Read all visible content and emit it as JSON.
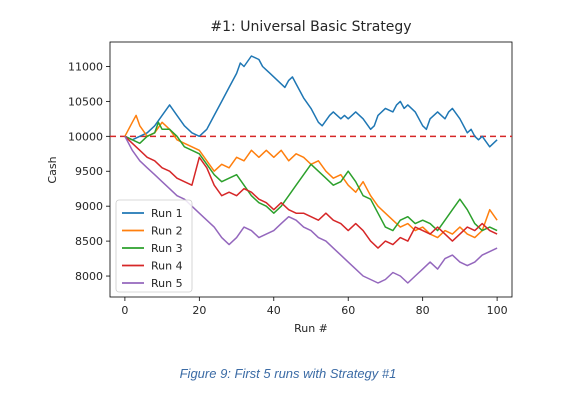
{
  "caption": "Figure 9: First 5 runs with Strategy #1",
  "chart_data": {
    "type": "line",
    "title": "#1: Universal Basic Strategy",
    "xlabel": "Run #",
    "ylabel": "Cash",
    "xlim": [
      -4,
      104
    ],
    "ylim": [
      7700,
      11350
    ],
    "xticks": [
      0,
      20,
      40,
      60,
      80,
      100
    ],
    "yticks": [
      8000,
      8500,
      9000,
      9500,
      10000,
      10500,
      11000
    ],
    "grid": false,
    "legend_position": "lower-left",
    "reference_line": {
      "y": 10000,
      "style": "dashed",
      "color": "#d62728"
    },
    "series": [
      {
        "name": "Run 1",
        "color": "#1f77b4",
        "points": [
          [
            0,
            10000
          ],
          [
            2,
            9950
          ],
          [
            4,
            10000
          ],
          [
            6,
            10050
          ],
          [
            8,
            10150
          ],
          [
            10,
            10300
          ],
          [
            12,
            10450
          ],
          [
            14,
            10300
          ],
          [
            16,
            10150
          ],
          [
            18,
            10050
          ],
          [
            20,
            10000
          ],
          [
            22,
            10100
          ],
          [
            24,
            10300
          ],
          [
            26,
            10500
          ],
          [
            28,
            10700
          ],
          [
            30,
            10900
          ],
          [
            31,
            11050
          ],
          [
            32,
            11000
          ],
          [
            34,
            11150
          ],
          [
            36,
            11100
          ],
          [
            37,
            11000
          ],
          [
            38,
            10950
          ],
          [
            39,
            10900
          ],
          [
            40,
            10850
          ],
          [
            41,
            10800
          ],
          [
            42,
            10750
          ],
          [
            43,
            10700
          ],
          [
            44,
            10800
          ],
          [
            45,
            10850
          ],
          [
            46,
            10750
          ],
          [
            48,
            10550
          ],
          [
            50,
            10400
          ],
          [
            52,
            10200
          ],
          [
            53,
            10150
          ],
          [
            55,
            10300
          ],
          [
            56,
            10350
          ],
          [
            58,
            10250
          ],
          [
            59,
            10300
          ],
          [
            60,
            10250
          ],
          [
            61,
            10300
          ],
          [
            62,
            10350
          ],
          [
            64,
            10250
          ],
          [
            66,
            10100
          ],
          [
            67,
            10150
          ],
          [
            68,
            10300
          ],
          [
            70,
            10400
          ],
          [
            72,
            10350
          ],
          [
            73,
            10450
          ],
          [
            74,
            10500
          ],
          [
            75,
            10400
          ],
          [
            76,
            10450
          ],
          [
            78,
            10350
          ],
          [
            80,
            10150
          ],
          [
            81,
            10100
          ],
          [
            82,
            10250
          ],
          [
            84,
            10350
          ],
          [
            85,
            10300
          ],
          [
            86,
            10250
          ],
          [
            87,
            10350
          ],
          [
            88,
            10400
          ],
          [
            90,
            10250
          ],
          [
            92,
            10050
          ],
          [
            93,
            10100
          ],
          [
            94,
            10000
          ],
          [
            95,
            9950
          ],
          [
            96,
            10000
          ],
          [
            98,
            9850
          ],
          [
            100,
            9950
          ]
        ]
      },
      {
        "name": "Run 2",
        "color": "#ff7f0e",
        "points": [
          [
            0,
            10000
          ],
          [
            2,
            10200
          ],
          [
            3,
            10300
          ],
          [
            4,
            10150
          ],
          [
            6,
            10000
          ],
          [
            8,
            10050
          ],
          [
            10,
            10200
          ],
          [
            12,
            10100
          ],
          [
            14,
            9950
          ],
          [
            16,
            9900
          ],
          [
            18,
            9850
          ],
          [
            20,
            9800
          ],
          [
            22,
            9650
          ],
          [
            24,
            9500
          ],
          [
            26,
            9600
          ],
          [
            28,
            9550
          ],
          [
            30,
            9700
          ],
          [
            32,
            9650
          ],
          [
            34,
            9800
          ],
          [
            36,
            9700
          ],
          [
            37,
            9750
          ],
          [
            38,
            9800
          ],
          [
            40,
            9700
          ],
          [
            42,
            9800
          ],
          [
            44,
            9650
          ],
          [
            46,
            9750
          ],
          [
            48,
            9700
          ],
          [
            50,
            9600
          ],
          [
            52,
            9650
          ],
          [
            54,
            9500
          ],
          [
            56,
            9400
          ],
          [
            58,
            9450
          ],
          [
            60,
            9300
          ],
          [
            62,
            9200
          ],
          [
            64,
            9350
          ],
          [
            66,
            9150
          ],
          [
            68,
            9000
          ],
          [
            70,
            8900
          ],
          [
            72,
            8800
          ],
          [
            74,
            8700
          ],
          [
            76,
            8750
          ],
          [
            78,
            8650
          ],
          [
            80,
            8700
          ],
          [
            82,
            8600
          ],
          [
            84,
            8550
          ],
          [
            86,
            8650
          ],
          [
            88,
            8600
          ],
          [
            90,
            8700
          ],
          [
            92,
            8600
          ],
          [
            94,
            8550
          ],
          [
            96,
            8650
          ],
          [
            98,
            8950
          ],
          [
            100,
            8800
          ]
        ]
      },
      {
        "name": "Run 3",
        "color": "#2ca02c",
        "points": [
          [
            0,
            10000
          ],
          [
            2,
            9950
          ],
          [
            4,
            9900
          ],
          [
            6,
            10000
          ],
          [
            8,
            10050
          ],
          [
            9,
            10200
          ],
          [
            10,
            10100
          ],
          [
            12,
            10100
          ],
          [
            14,
            10000
          ],
          [
            16,
            9850
          ],
          [
            18,
            9800
          ],
          [
            20,
            9750
          ],
          [
            22,
            9600
          ],
          [
            24,
            9450
          ],
          [
            26,
            9350
          ],
          [
            28,
            9400
          ],
          [
            30,
            9450
          ],
          [
            32,
            9300
          ],
          [
            34,
            9150
          ],
          [
            36,
            9050
          ],
          [
            38,
            9000
          ],
          [
            40,
            8900
          ],
          [
            42,
            9000
          ],
          [
            44,
            9150
          ],
          [
            46,
            9300
          ],
          [
            48,
            9450
          ],
          [
            50,
            9600
          ],
          [
            52,
            9500
          ],
          [
            54,
            9400
          ],
          [
            56,
            9300
          ],
          [
            58,
            9350
          ],
          [
            60,
            9500
          ],
          [
            62,
            9350
          ],
          [
            64,
            9150
          ],
          [
            66,
            9100
          ],
          [
            68,
            8900
          ],
          [
            70,
            8700
          ],
          [
            72,
            8650
          ],
          [
            74,
            8800
          ],
          [
            76,
            8850
          ],
          [
            78,
            8750
          ],
          [
            80,
            8800
          ],
          [
            82,
            8750
          ],
          [
            84,
            8650
          ],
          [
            86,
            8800
          ],
          [
            88,
            8950
          ],
          [
            90,
            9100
          ],
          [
            92,
            8950
          ],
          [
            94,
            8750
          ],
          [
            96,
            8650
          ],
          [
            98,
            8700
          ],
          [
            100,
            8650
          ]
        ]
      },
      {
        "name": "Run 4",
        "color": "#d62728",
        "points": [
          [
            0,
            10000
          ],
          [
            2,
            9900
          ],
          [
            4,
            9800
          ],
          [
            6,
            9700
          ],
          [
            8,
            9650
          ],
          [
            10,
            9550
          ],
          [
            12,
            9500
          ],
          [
            14,
            9400
          ],
          [
            16,
            9350
          ],
          [
            18,
            9300
          ],
          [
            20,
            9700
          ],
          [
            22,
            9550
          ],
          [
            24,
            9300
          ],
          [
            26,
            9150
          ],
          [
            28,
            9200
          ],
          [
            30,
            9150
          ],
          [
            32,
            9250
          ],
          [
            34,
            9200
          ],
          [
            36,
            9100
          ],
          [
            38,
            9050
          ],
          [
            40,
            8950
          ],
          [
            42,
            9050
          ],
          [
            44,
            8950
          ],
          [
            46,
            8900
          ],
          [
            48,
            8900
          ],
          [
            50,
            8850
          ],
          [
            52,
            8800
          ],
          [
            54,
            8900
          ],
          [
            56,
            8800
          ],
          [
            58,
            8750
          ],
          [
            60,
            8650
          ],
          [
            62,
            8750
          ],
          [
            64,
            8650
          ],
          [
            66,
            8500
          ],
          [
            68,
            8400
          ],
          [
            70,
            8500
          ],
          [
            72,
            8450
          ],
          [
            74,
            8550
          ],
          [
            76,
            8500
          ],
          [
            78,
            8700
          ],
          [
            80,
            8650
          ],
          [
            82,
            8600
          ],
          [
            84,
            8700
          ],
          [
            86,
            8600
          ],
          [
            88,
            8500
          ],
          [
            90,
            8600
          ],
          [
            92,
            8700
          ],
          [
            94,
            8650
          ],
          [
            96,
            8750
          ],
          [
            98,
            8650
          ],
          [
            100,
            8600
          ]
        ]
      },
      {
        "name": "Run 5",
        "color": "#9467bd",
        "points": [
          [
            0,
            10000
          ],
          [
            2,
            9800
          ],
          [
            4,
            9650
          ],
          [
            6,
            9550
          ],
          [
            8,
            9450
          ],
          [
            10,
            9350
          ],
          [
            12,
            9250
          ],
          [
            14,
            9150
          ],
          [
            16,
            9100
          ],
          [
            18,
            9000
          ],
          [
            20,
            8900
          ],
          [
            22,
            8800
          ],
          [
            24,
            8700
          ],
          [
            26,
            8550
          ],
          [
            28,
            8450
          ],
          [
            30,
            8550
          ],
          [
            32,
            8700
          ],
          [
            34,
            8650
          ],
          [
            36,
            8550
          ],
          [
            38,
            8600
          ],
          [
            40,
            8650
          ],
          [
            42,
            8750
          ],
          [
            44,
            8850
          ],
          [
            46,
            8800
          ],
          [
            48,
            8700
          ],
          [
            50,
            8650
          ],
          [
            52,
            8550
          ],
          [
            54,
            8500
          ],
          [
            56,
            8400
          ],
          [
            58,
            8300
          ],
          [
            60,
            8200
          ],
          [
            62,
            8100
          ],
          [
            64,
            8000
          ],
          [
            66,
            7950
          ],
          [
            68,
            7900
          ],
          [
            70,
            7950
          ],
          [
            72,
            8050
          ],
          [
            74,
            8000
          ],
          [
            76,
            7900
          ],
          [
            78,
            8000
          ],
          [
            80,
            8100
          ],
          [
            82,
            8200
          ],
          [
            84,
            8100
          ],
          [
            86,
            8250
          ],
          [
            88,
            8300
          ],
          [
            90,
            8200
          ],
          [
            92,
            8150
          ],
          [
            94,
            8200
          ],
          [
            96,
            8300
          ],
          [
            98,
            8350
          ],
          [
            100,
            8400
          ]
        ]
      }
    ]
  }
}
